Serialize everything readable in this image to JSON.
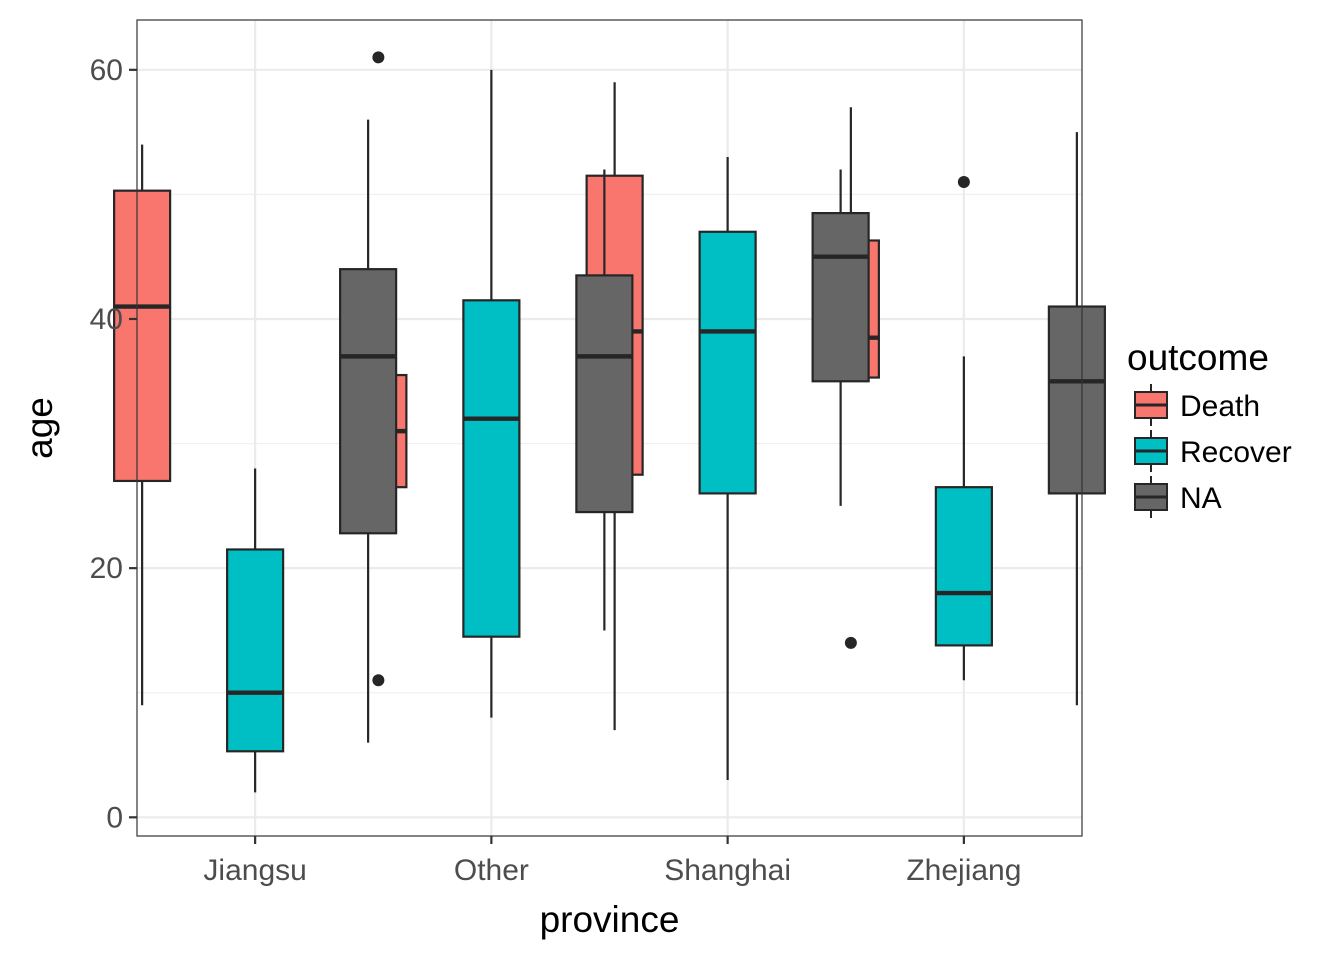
{
  "chart_data": {
    "type": "boxplot",
    "xlabel": "province",
    "ylabel": "age",
    "categories": [
      "Jiangsu",
      "Other",
      "Shanghai",
      "Zhejiang"
    ],
    "ylim": [
      -1.5,
      64
    ],
    "yticks": [
      0,
      20,
      40,
      60
    ],
    "grid": true,
    "legend": {
      "title": "outcome",
      "position": "right"
    },
    "series": [
      {
        "name": "Death",
        "color": "#F8766D",
        "boxes": [
          {
            "min": 9,
            "q1": 27,
            "median": 41,
            "q3": 50.3,
            "max": 54,
            "outliers": []
          },
          {
            "min": 26,
            "q1": 26.5,
            "median": 31,
            "q3": 35.5,
            "max": 36,
            "outliers": [
              61,
              11
            ]
          },
          {
            "min": 7,
            "q1": 27.5,
            "median": 39,
            "q3": 51.5,
            "max": 59,
            "outliers": []
          },
          {
            "min": 35,
            "q1": 35.3,
            "median": 38.5,
            "q3": 46.3,
            "max": 57,
            "outliers": [
              14
            ]
          }
        ]
      },
      {
        "name": "Recover",
        "color": "#00BFC4",
        "boxes": [
          {
            "min": 2,
            "q1": 5.3,
            "median": 10,
            "q3": 21.5,
            "max": 28,
            "outliers": []
          },
          {
            "min": 8,
            "q1": 14.5,
            "median": 32,
            "q3": 41.5,
            "max": 60,
            "outliers": []
          },
          {
            "min": 3,
            "q1": 26,
            "median": 39,
            "q3": 47,
            "max": 53,
            "outliers": []
          },
          {
            "min": 11,
            "q1": 13.8,
            "median": 18,
            "q3": 26.5,
            "max": 37,
            "outliers": [
              51
            ]
          }
        ]
      },
      {
        "name": "NA",
        "color": "#666666",
        "boxes": [
          {
            "min": 6,
            "q1": 22.8,
            "median": 37,
            "q3": 44,
            "max": 56,
            "outliers": []
          },
          {
            "min": 15,
            "q1": 24.5,
            "median": 37,
            "q3": 43.5,
            "max": 52,
            "outliers": []
          },
          {
            "min": 25,
            "q1": 35,
            "median": 45,
            "q3": 48.5,
            "max": 52,
            "outliers": []
          },
          {
            "min": 9,
            "q1": 26,
            "median": 35,
            "q3": 41,
            "max": 55,
            "outliers": []
          }
        ]
      }
    ]
  }
}
